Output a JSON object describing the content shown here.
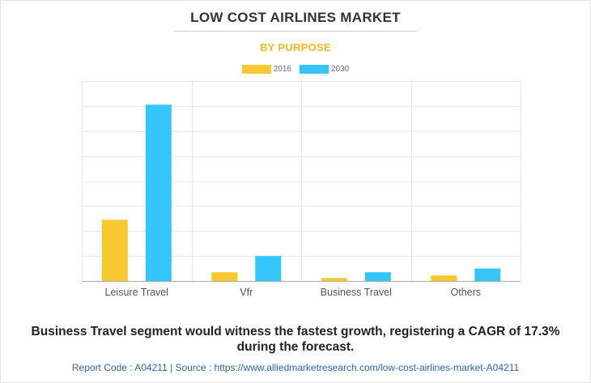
{
  "header": {
    "title": "LOW COST AIRLINES MARKET",
    "subtitle": "BY PURPOSE"
  },
  "colors": {
    "series_2016": "#f6c832",
    "series_2030": "#34c6fb",
    "subtitle": "#f6ba21",
    "grid": "#e8e8e8",
    "axis": "#aaaaaa",
    "source": "#2f64a8"
  },
  "chart_data": {
    "type": "bar",
    "title": "LOW COST AIRLINES MARKET",
    "subtitle": "BY PURPOSE",
    "categories": [
      "Leisure Travel",
      "Vfr",
      "Business Travel",
      "Others"
    ],
    "series": [
      {
        "name": "2016",
        "values": [
          24.5,
          3.5,
          1.2,
          2.2
        ]
      },
      {
        "name": "2030",
        "values": [
          70.5,
          10.0,
          3.5,
          5.0
        ]
      }
    ],
    "ylim": [
      0,
      80
    ],
    "y_tick_count": 8,
    "y_tick_labels_visible": false,
    "grid": true,
    "legend": "top-center",
    "xlabel": "",
    "ylabel": ""
  },
  "footer": {
    "conclusion": "Business Travel segment would witness the fastest growth, registering a CAGR of 17.3% during the forecast.",
    "source": "Report Code : A04211  |  Source : https://www.alliedmarketresearch.com/low-cost-airlines-market-A04211"
  }
}
